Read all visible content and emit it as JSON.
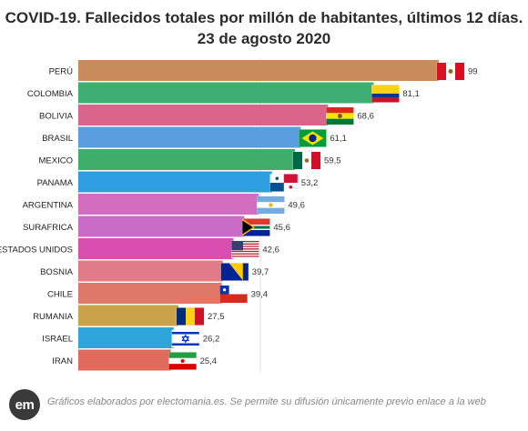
{
  "title": "COVID-19. Fallecidos totales por millón de habitantes, últimos 12 días. 23 de agosto 2020",
  "footer": {
    "logo_text": "em",
    "text": "Gráficos elaborados por electomania.es. Se permite su difusión únicamente previo enlace a la web"
  },
  "chart_data": {
    "type": "bar",
    "orientation": "horizontal",
    "title": "COVID-19. Fallecidos totales por millón de habitantes, últimos 12 días. 23 de agosto 2020",
    "xlabel": "",
    "ylabel": "",
    "xlim": [
      0,
      100
    ],
    "grid": true,
    "categories": [
      "PERÚ",
      "COLOMBIA",
      "BOLIVIA",
      "BRASIL",
      "MEXICO",
      "PANAMA",
      "ARGENTINA",
      "SURAFRICA",
      "ESTADOS UNIDOS",
      "BOSNIA",
      "CHILE",
      "RUMANIA",
      "ISRAEL",
      "IRAN"
    ],
    "values": [
      99,
      81.1,
      68.6,
      61.1,
      59.5,
      53.2,
      49.6,
      45.6,
      42.6,
      39.7,
      39.4,
      27.5,
      26.2,
      25.4
    ],
    "value_labels": [
      "99",
      "81,1",
      "68,6",
      "61,1",
      "59,5",
      "53,2",
      "49,6",
      "45,6",
      "42,6",
      "39,7",
      "39,4",
      "27,5",
      "26,2",
      "25,4"
    ],
    "colors": [
      "#c98a5c",
      "#3fae72",
      "#d9668a",
      "#5b9ee0",
      "#3fae6a",
      "#2f9ee0",
      "#d46cc0",
      "#c96cc8",
      "#d94fb0",
      "#e07c88",
      "#e0786a",
      "#c9a24a",
      "#2fa6d9",
      "#e06a5c"
    ],
    "flags": [
      "flag-peru",
      "flag-colombia",
      "flag-bolivia",
      "flag-brazil",
      "flag-mexico",
      "flag-panama",
      "flag-argentina",
      "flag-south-africa",
      "flag-usa",
      "flag-bosnia",
      "flag-chile",
      "flag-romania",
      "flag-israel",
      "flag-iran"
    ]
  }
}
